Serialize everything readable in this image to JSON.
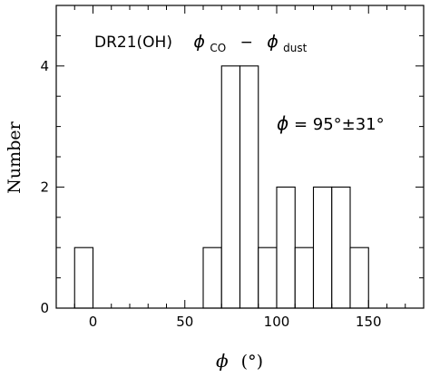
{
  "chart_data": {
    "type": "bar",
    "style": "histogram",
    "bin_width": 10,
    "bins": [
      {
        "x0": -10,
        "x1": 0,
        "value": 1
      },
      {
        "x0": 60,
        "x1": 70,
        "value": 1
      },
      {
        "x0": 70,
        "x1": 80,
        "value": 4
      },
      {
        "x0": 80,
        "x1": 90,
        "value": 4
      },
      {
        "x0": 90,
        "x1": 100,
        "value": 1
      },
      {
        "x0": 100,
        "x1": 110,
        "value": 2
      },
      {
        "x0": 110,
        "x1": 120,
        "value": 1
      },
      {
        "x0": 120,
        "x1": 130,
        "value": 2
      },
      {
        "x0": 130,
        "x1": 140,
        "value": 2
      },
      {
        "x0": 140,
        "x1": 150,
        "value": 1
      }
    ],
    "xlim": [
      -20,
      180
    ],
    "ylim": [
      0,
      5
    ],
    "xticks_major": [
      0,
      50,
      100,
      150
    ],
    "xticks_minor_step": 10,
    "yticks_major": [
      0,
      2,
      4
    ],
    "yticks_minor_step": 0.5,
    "xlabel": {
      "symbol": "ϕ",
      "unit": "(°)"
    },
    "ylabel": "Number",
    "title": {
      "source": "DR21(OH)",
      "phi1": "ϕ",
      "sub1": "CO",
      "minus": "−",
      "phi2": "ϕ",
      "sub2": "dust"
    },
    "annotation": {
      "symbol": "ϕ",
      "text": " = 95°±31°"
    },
    "grid": false,
    "legend": "none",
    "colors": {
      "bar_fill": "#ffffff",
      "bar_stroke": "#000000",
      "axis": "#000000"
    }
  }
}
